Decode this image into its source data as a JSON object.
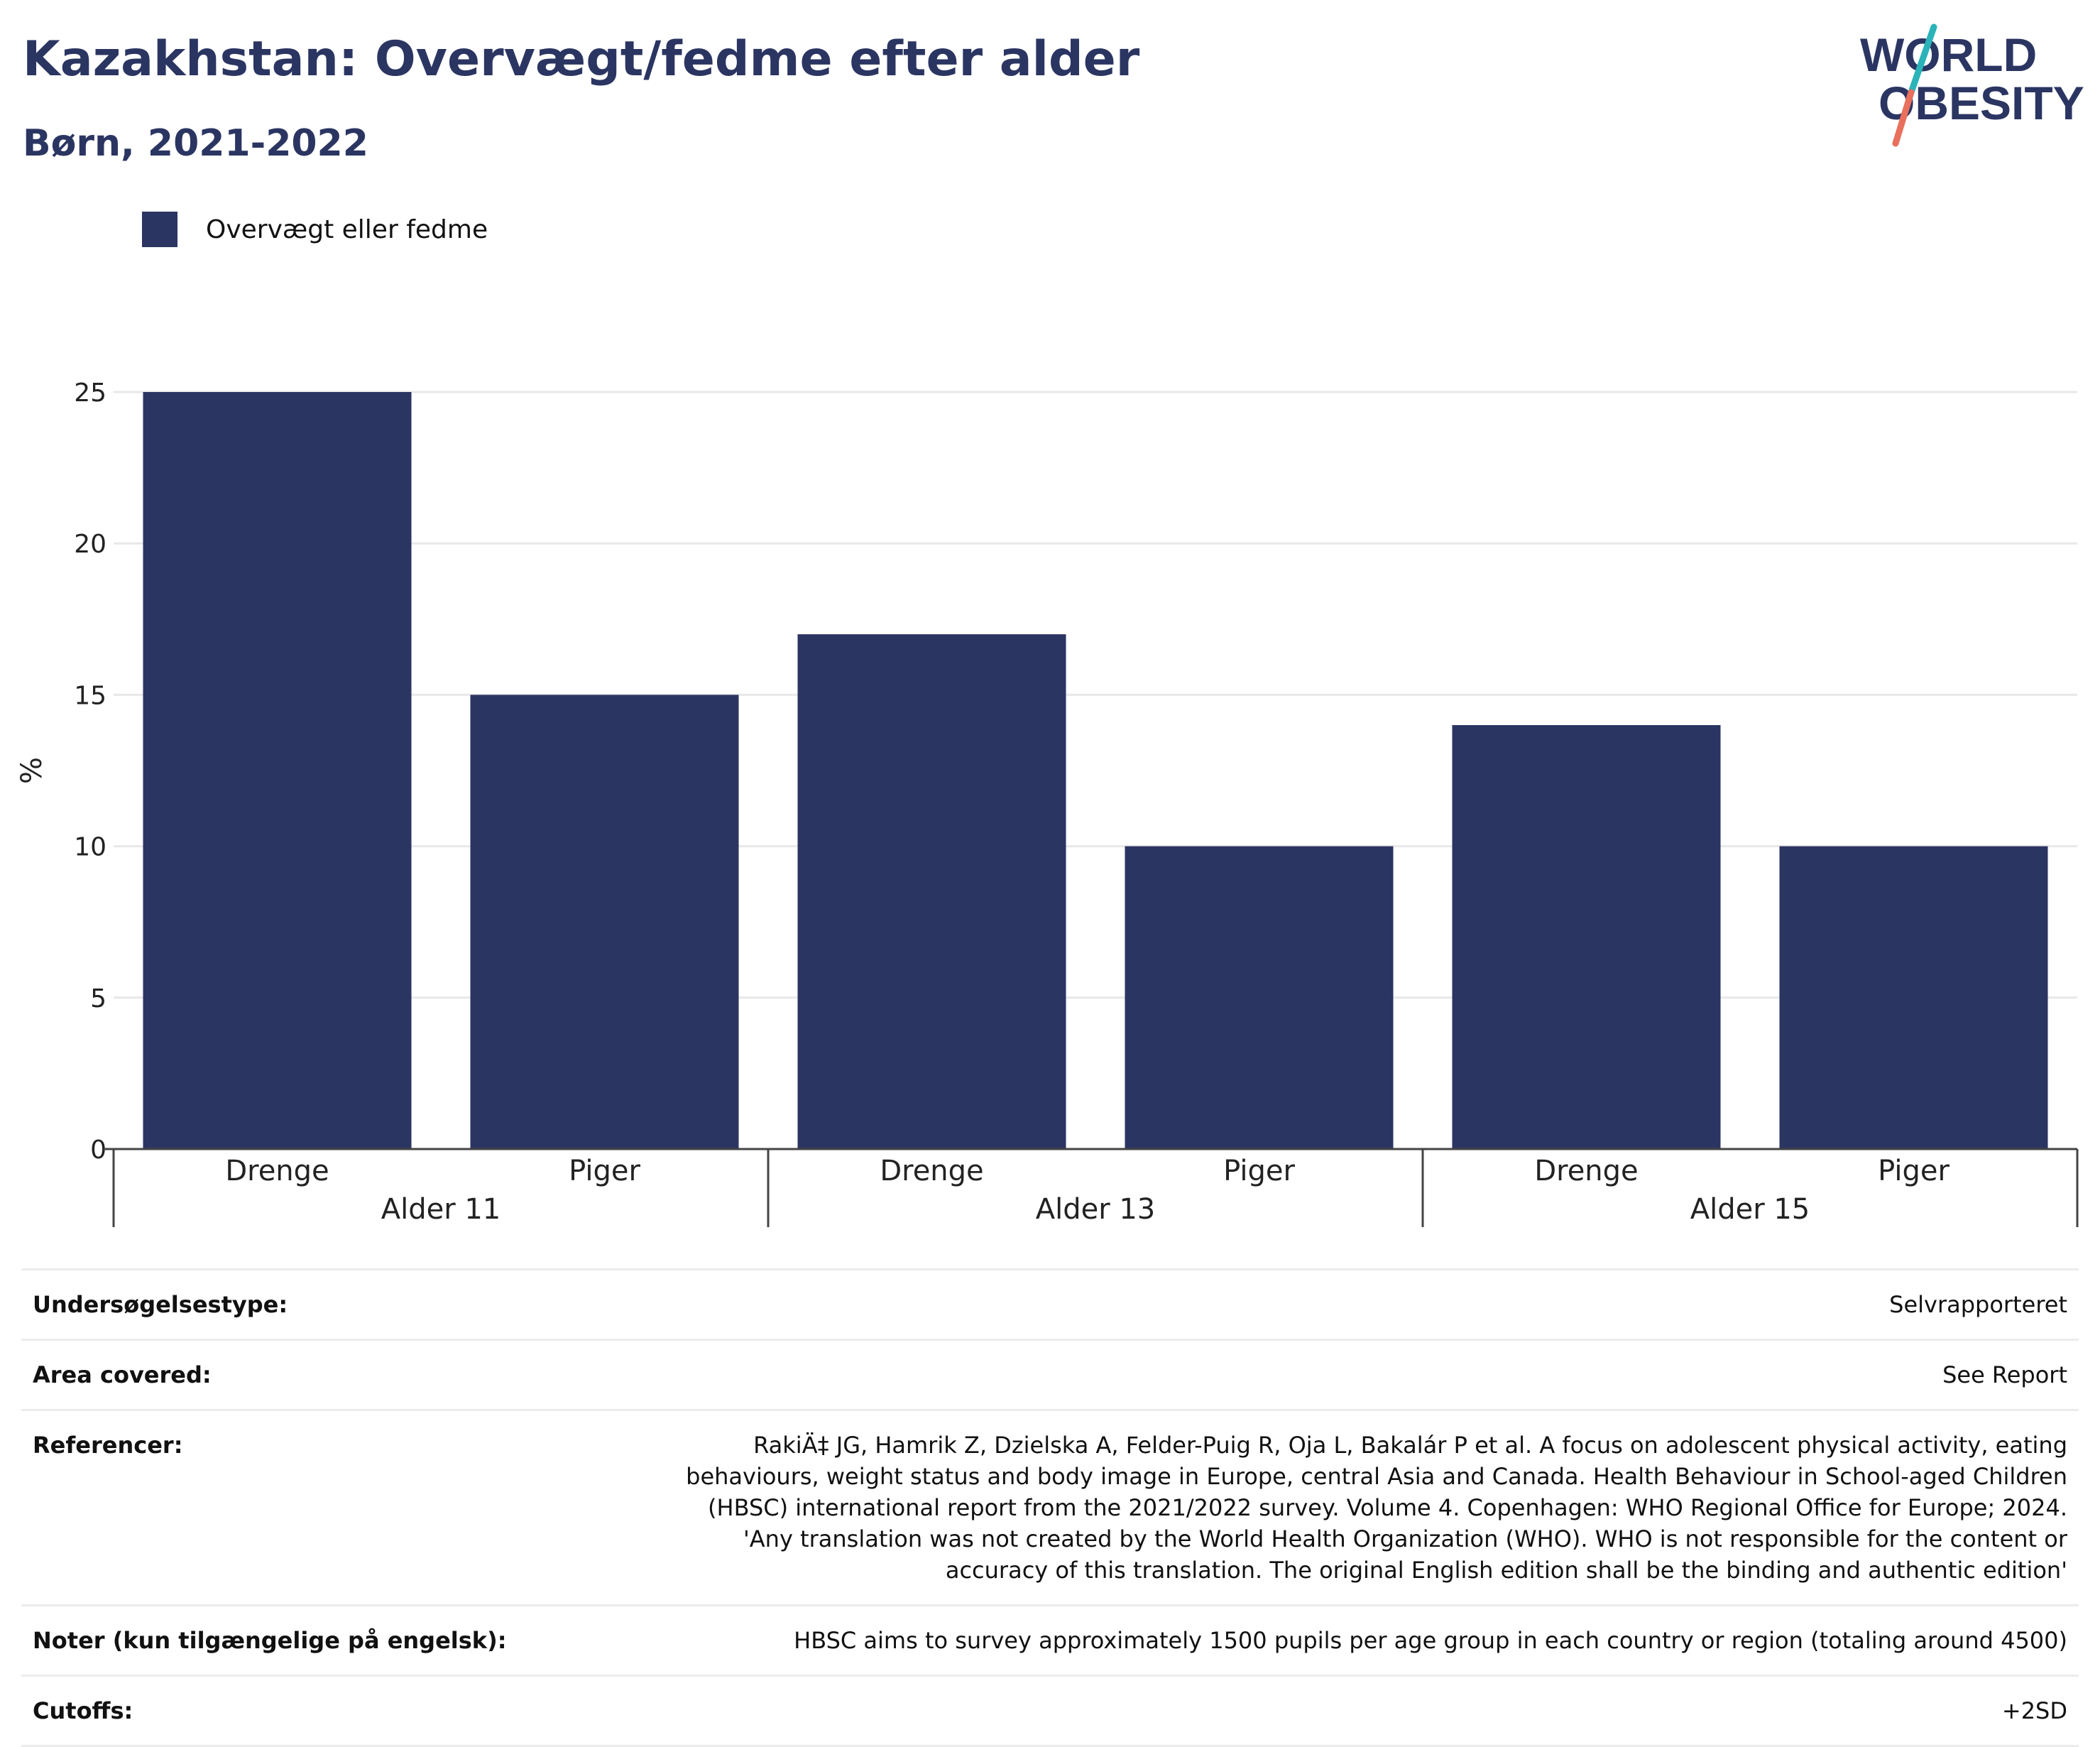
{
  "header": {
    "title": "Kazakhstan: Overvægt/fedme efter alder",
    "subtitle": "Børn, 2021-2022"
  },
  "logo": {
    "line1": "WORLD",
    "line2": "OBESITY",
    "colors": {
      "text": "#2b3562",
      "slash_top": "#2ab3b8",
      "slash_bottom": "#e8705d"
    }
  },
  "legend": {
    "label": "Overvægt eller fedme",
    "color": "#2b3562"
  },
  "chart_data": {
    "type": "bar",
    "groups": [
      "Alder 11",
      "Alder 13",
      "Alder 15"
    ],
    "categories": [
      "Drenge",
      "Piger",
      "Drenge",
      "Piger",
      "Drenge",
      "Piger"
    ],
    "category_groups": [
      0,
      0,
      1,
      1,
      2,
      2
    ],
    "series": [
      {
        "name": "Overvægt eller fedme",
        "values": [
          25,
          15,
          17,
          10,
          14,
          10
        ],
        "color": "#2b3562"
      }
    ],
    "ylabel": "%",
    "xlabel": "",
    "ylim": [
      0,
      25
    ],
    "yticks": [
      0,
      5,
      10,
      15,
      20,
      25
    ],
    "grid": true,
    "legend_position": "top-left"
  },
  "info": [
    {
      "label": "Undersøgelsestype:",
      "value": "Selvrapporteret"
    },
    {
      "label": "Area covered:",
      "value": "See Report"
    },
    {
      "label": "Referencer:",
      "value": "RakiÄ‡ JG, Hamrik Z, Dzielska A, Felder-Puig R, Oja L, Bakalár P et al. A focus on adolescent physical activity, eating behaviours, weight status and body image in Europe, central Asia and Canada. Health Behaviour in School-aged Children (HBSC) international report from the 2021/2022 survey. Volume 4. Copenhagen: WHO Regional Office for Europe; 2024. 'Any translation was not created by the World Health Organization (WHO). WHO is not responsible for the content or accuracy of this translation. The original English edition shall be the binding and authentic edition'"
    },
    {
      "label": "Noter (kun tilgængelige på engelsk):",
      "value": "HBSC aims to survey approximately 1500 pupils per age group in each country or region (totaling around 4500)"
    },
    {
      "label": "Cutoffs:",
      "value": "+2SD"
    }
  ]
}
